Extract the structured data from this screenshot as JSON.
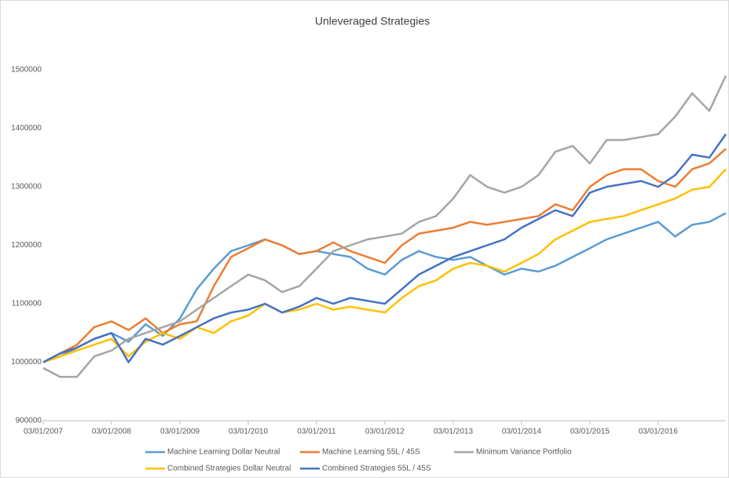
{
  "chart_data": {
    "type": "line",
    "title": "Unleveraged Strategies",
    "x": [
      "03/01/2007",
      "03/04/2007",
      "03/07/2007",
      "03/10/2007",
      "03/01/2008",
      "03/04/2008",
      "03/07/2008",
      "03/10/2008",
      "03/01/2009",
      "03/04/2009",
      "03/07/2009",
      "03/10/2009",
      "03/01/2010",
      "03/04/2010",
      "03/07/2010",
      "03/10/2010",
      "03/01/2011",
      "03/04/2011",
      "03/07/2011",
      "03/10/2011",
      "03/01/2012",
      "03/04/2012",
      "03/07/2012",
      "03/10/2012",
      "03/01/2013",
      "03/04/2013",
      "03/07/2013",
      "03/10/2013",
      "03/01/2014",
      "03/04/2014",
      "03/07/2014",
      "03/10/2014",
      "03/01/2015",
      "03/04/2015",
      "03/07/2015",
      "03/10/2015",
      "03/01/2016",
      "03/04/2016",
      "03/07/2016",
      "03/10/2016",
      "30/12/2016"
    ],
    "series": [
      {
        "name": "Machine Learning  Dollar Neutral",
        "color": "#5b9bd5",
        "values": [
          1000000,
          1010000,
          1025000,
          1040000,
          1050000,
          1035000,
          1065000,
          1045000,
          1075000,
          1125000,
          1160000,
          1190000,
          1200000,
          1210000,
          1200000,
          1185000,
          1190000,
          1185000,
          1180000,
          1160000,
          1150000,
          1175000,
          1190000,
          1180000,
          1175000,
          1180000,
          1165000,
          1150000,
          1160000,
          1155000,
          1165000,
          1180000,
          1195000,
          1210000,
          1220000,
          1230000,
          1240000,
          1215000,
          1235000,
          1240000,
          1255000
        ]
      },
      {
        "name": "Machine Learning 55L / 45S",
        "color": "#ed7d31",
        "values": [
          1000000,
          1015000,
          1030000,
          1060000,
          1070000,
          1055000,
          1075000,
          1050000,
          1065000,
          1070000,
          1130000,
          1180000,
          1195000,
          1210000,
          1200000,
          1185000,
          1190000,
          1205000,
          1190000,
          1180000,
          1170000,
          1200000,
          1220000,
          1225000,
          1230000,
          1240000,
          1235000,
          1240000,
          1245000,
          1250000,
          1270000,
          1260000,
          1300000,
          1320000,
          1330000,
          1330000,
          1310000,
          1300000,
          1330000,
          1340000,
          1365000
        ]
      },
      {
        "name": "Minimum Variance Portfolio",
        "color": "#a5a5a5",
        "values": [
          990000,
          975000,
          975000,
          1010000,
          1020000,
          1040000,
          1050000,
          1060000,
          1070000,
          1090000,
          1110000,
          1130000,
          1150000,
          1140000,
          1120000,
          1130000,
          1160000,
          1190000,
          1200000,
          1210000,
          1215000,
          1220000,
          1240000,
          1250000,
          1280000,
          1320000,
          1300000,
          1290000,
          1300000,
          1320000,
          1360000,
          1370000,
          1340000,
          1380000,
          1380000,
          1385000,
          1390000,
          1420000,
          1460000,
          1430000,
          1490000
        ]
      },
      {
        "name": "Combined Strategies Dollar Neutral",
        "color": "#ffc000",
        "values": [
          1000000,
          1010000,
          1020000,
          1030000,
          1040000,
          1010000,
          1035000,
          1050000,
          1040000,
          1060000,
          1050000,
          1070000,
          1080000,
          1100000,
          1085000,
          1090000,
          1100000,
          1090000,
          1095000,
          1090000,
          1085000,
          1110000,
          1130000,
          1140000,
          1160000,
          1170000,
          1165000,
          1155000,
          1170000,
          1185000,
          1210000,
          1225000,
          1240000,
          1245000,
          1250000,
          1260000,
          1270000,
          1280000,
          1295000,
          1300000,
          1330000
        ]
      },
      {
        "name": "Combined Strategies 55L / 45S",
        "color": "#4472c4",
        "values": [
          1000000,
          1015000,
          1025000,
          1040000,
          1050000,
          1000000,
          1040000,
          1030000,
          1045000,
          1060000,
          1075000,
          1085000,
          1090000,
          1100000,
          1085000,
          1095000,
          1110000,
          1100000,
          1110000,
          1105000,
          1100000,
          1125000,
          1150000,
          1165000,
          1180000,
          1190000,
          1200000,
          1210000,
          1230000,
          1245000,
          1260000,
          1250000,
          1290000,
          1300000,
          1305000,
          1310000,
          1300000,
          1320000,
          1355000,
          1350000,
          1390000
        ]
      }
    ],
    "xlim": [
      "03/01/2007",
      "30/12/2016"
    ],
    "xticks": [
      "03/01/2007",
      "03/01/2008",
      "03/01/2009",
      "03/01/2010",
      "03/01/2011",
      "03/01/2012",
      "03/01/2013",
      "03/01/2014",
      "03/01/2015",
      "03/01/2016"
    ],
    "ylim": [
      900000,
      1500000
    ],
    "yticks": [
      900000,
      1000000,
      1100000,
      1200000,
      1300000,
      1400000,
      1500000
    ],
    "grid": false,
    "legend": "bottom"
  }
}
